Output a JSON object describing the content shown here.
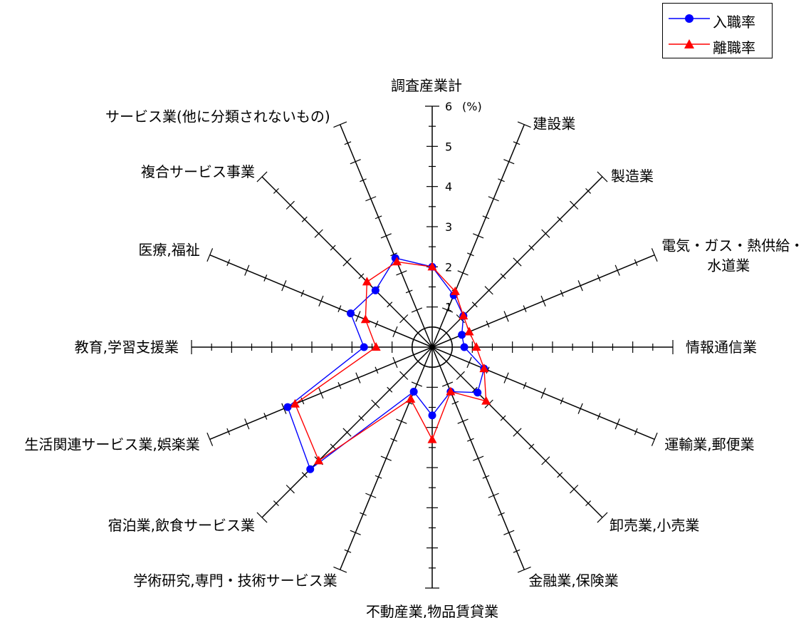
{
  "chart_data": {
    "type": "radar",
    "unit_label": "(%)",
    "rmax": 6,
    "radial_ticks": [
      "1",
      "2",
      "3",
      "4",
      "5",
      "6"
    ],
    "categories": [
      "調査産業計",
      "建設業",
      "製造業",
      "電気・ガス・熱供給・水道業",
      "情報通信業",
      "運輸業,郵便業",
      "卸売業,小売業",
      "金融業,保険業",
      "不動産業,物品賃貸業",
      "学術研究,専門・技術サービス業",
      "宿泊業,飲食サービス業",
      "生活関連サービス業,娯楽業",
      "教育,学習支援業",
      "医療,福祉",
      "複合サービス事業",
      "サービス業(他に分類されないもの)"
    ],
    "series": [
      {
        "name": "入職率",
        "color": "#0000ff",
        "marker": "circle",
        "values": [
          2.0,
          1.4,
          1.1,
          0.8,
          0.8,
          1.4,
          1.6,
          1.2,
          1.7,
          1.2,
          4.3,
          3.9,
          1.7,
          2.2,
          2.0,
          2.4
        ]
      },
      {
        "name": "離職率",
        "color": "#ff0000",
        "marker": "triangle",
        "values": [
          2.0,
          1.5,
          1.1,
          1.0,
          1.1,
          1.4,
          1.9,
          1.2,
          2.3,
          1.4,
          4.0,
          3.7,
          1.4,
          1.8,
          2.3,
          2.3
        ]
      }
    ]
  },
  "legend": {
    "items": [
      "入職率",
      "離職率"
    ]
  }
}
